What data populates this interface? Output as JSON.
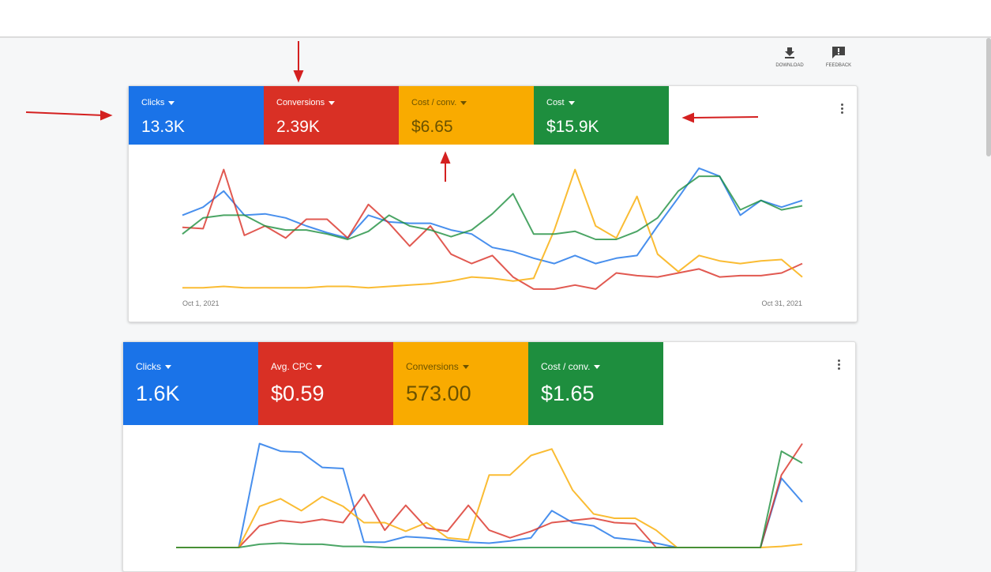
{
  "toolbar": {
    "download": "DOWNLOAD",
    "feedback": "FEEDBACK"
  },
  "chart_data": [
    {
      "type": "line",
      "categories": [
        "Oct 1, 2021",
        null,
        null,
        null,
        null,
        null,
        null,
        null,
        null,
        null,
        null,
        null,
        null,
        null,
        null,
        null,
        null,
        null,
        null,
        null,
        null,
        null,
        null,
        null,
        null,
        null,
        null,
        null,
        null,
        null,
        "Oct 31, 2021"
      ],
      "ylim": [
        0,
        100
      ],
      "series": [
        {
          "name": "Clicks",
          "total": "13.3K",
          "color": "#1a73e8",
          "values": [
            58,
            64,
            76,
            58,
            59,
            56,
            50,
            45,
            41,
            58,
            53,
            52,
            52,
            47,
            44,
            34,
            31,
            26,
            22,
            28,
            22,
            26,
            28,
            50,
            71,
            93,
            87,
            58,
            69,
            64,
            69
          ]
        },
        {
          "name": "Conversions",
          "total": "2.39K",
          "color": "#d93025",
          "values": [
            49,
            48,
            92,
            43,
            50,
            41,
            55,
            55,
            41,
            66,
            52,
            35,
            50,
            29,
            22,
            28,
            12,
            3,
            3,
            6,
            3,
            15,
            13,
            12,
            15,
            18,
            12,
            13,
            13,
            15,
            22
          ]
        },
        {
          "name": "Cost / conv.",
          "total": "$6.65",
          "color": "#f9ab00",
          "values": [
            4,
            4,
            5,
            4,
            4,
            4,
            4,
            5,
            5,
            4,
            5,
            6,
            7,
            9,
            12,
            11,
            9,
            11,
            47,
            92,
            50,
            41,
            72,
            29,
            16,
            28,
            24,
            22,
            24,
            25,
            12
          ]
        },
        {
          "name": "Cost",
          "total": "$15.9K",
          "color": "#1e8e3e",
          "values": [
            44,
            56,
            58,
            58,
            50,
            47,
            47,
            44,
            40,
            46,
            58,
            50,
            47,
            42,
            47,
            59,
            74,
            44,
            44,
            46,
            40,
            40,
            46,
            56,
            76,
            87,
            87,
            62,
            69,
            62,
            65
          ]
        }
      ]
    },
    {
      "type": "line",
      "categories": [
        null,
        null,
        null,
        null,
        null,
        null,
        null,
        null,
        null,
        null,
        null,
        null,
        null,
        null,
        null,
        null,
        null,
        null,
        null,
        null,
        null,
        null,
        null,
        null,
        null,
        null,
        null,
        null,
        null,
        null,
        null
      ],
      "ylim": [
        0,
        100
      ],
      "series": [
        {
          "name": "Clicks",
          "total": "1.6K",
          "color": "#1a73e8",
          "values": [
            0,
            0,
            0,
            0,
            96,
            89,
            88,
            74,
            73,
            5,
            5,
            10,
            9,
            7,
            5,
            4,
            6,
            9,
            34,
            23,
            20,
            9,
            7,
            4,
            0,
            0,
            0,
            0,
            0,
            64,
            42
          ]
        },
        {
          "name": "Avg. CPC",
          "total": "$0.59",
          "color": "#d93025",
          "values": [
            0,
            0,
            0,
            0,
            20,
            25,
            23,
            26,
            23,
            49,
            16,
            39,
            18,
            15,
            39,
            16,
            9,
            15,
            23,
            25,
            27,
            23,
            22,
            0,
            0,
            0,
            0,
            0,
            0,
            67,
            96
          ]
        },
        {
          "name": "Conversions",
          "total": "573.00",
          "color": "#f9ab00",
          "values": [
            0,
            0,
            0,
            0,
            38,
            45,
            34,
            47,
            38,
            23,
            23,
            15,
            23,
            9,
            7,
            67,
            67,
            85,
            91,
            53,
            31,
            27,
            27,
            16,
            0,
            0,
            0,
            0,
            0,
            1,
            3
          ]
        },
        {
          "name": "Cost / conv.",
          "total": "$1.65",
          "color": "#1e8e3e",
          "values": [
            0,
            0,
            0,
            0,
            3,
            4,
            3,
            3,
            1,
            1,
            0,
            0,
            0,
            0,
            0,
            0,
            0,
            0,
            0,
            0,
            0,
            0,
            0,
            0,
            0,
            0,
            0,
            0,
            0,
            89,
            78
          ]
        }
      ]
    }
  ]
}
